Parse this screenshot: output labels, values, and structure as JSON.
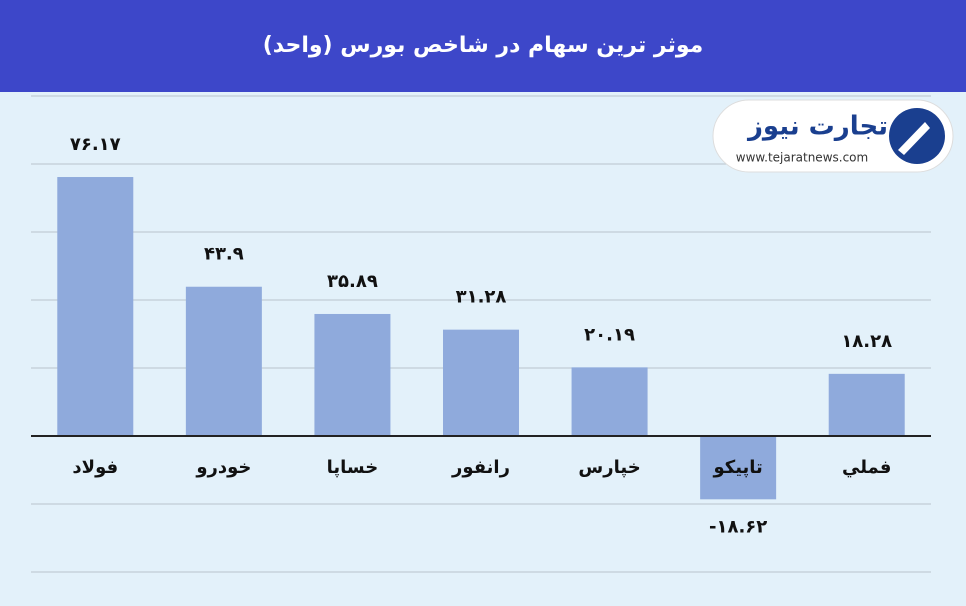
{
  "chart_data": {
    "type": "bar",
    "title": "موثر ترین سهام در شاخص بورس (واحد)",
    "categories": [
      "فولاد",
      "خودرو",
      "خساپا",
      "رانفور",
      "خپارس",
      "تاپیکو",
      "فملي"
    ],
    "values": [
      76.17,
      43.9,
      35.89,
      31.28,
      20.19,
      -18.62,
      18.28
    ],
    "value_labels": [
      "۷۶.۱۷",
      "۴۳.۹",
      "۳۵.۸۹",
      "۳۱.۲۸",
      "۲۰.۱۹",
      "-۱۸.۶۲",
      "۱۸.۲۸"
    ],
    "color": "#8faadc",
    "ylim": [
      -40,
      100
    ],
    "yticks": [
      -40,
      -20,
      0,
      20,
      40,
      60,
      80,
      100
    ],
    "grid": true
  },
  "logo": {
    "name": "تجارت نیوز",
    "url": "www.tejaratnews.com"
  }
}
